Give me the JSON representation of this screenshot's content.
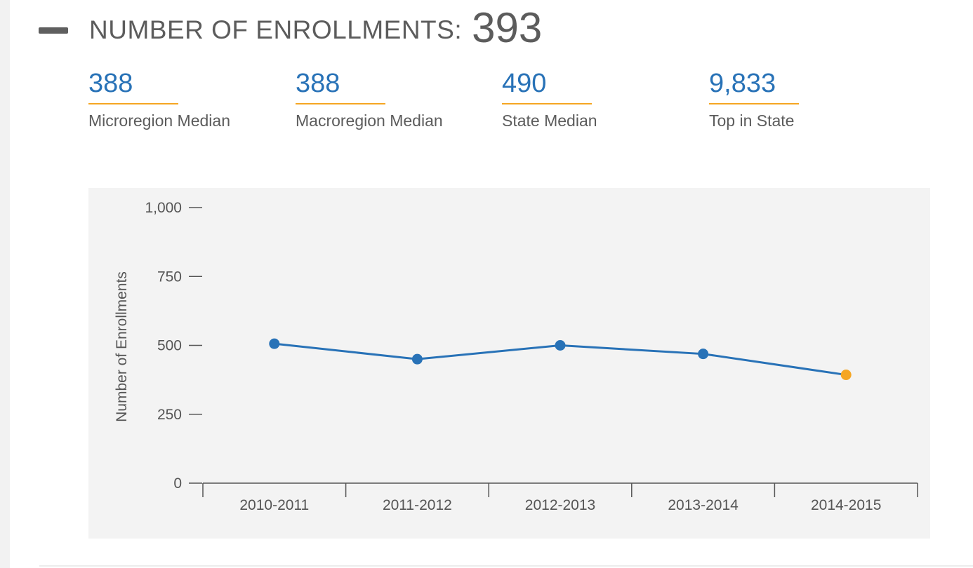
{
  "section": {
    "title": "NUMBER OF ENROLLMENTS:",
    "value": "393",
    "collapse_icon": "minus-icon"
  },
  "stats": [
    {
      "value": "388",
      "label": "Microregion Median"
    },
    {
      "value": "388",
      "label": "Macroregion Median"
    },
    {
      "value": "490",
      "label": "State Median"
    },
    {
      "value": "9,833",
      "label": "Top in State"
    }
  ],
  "colors": {
    "accent": "#2872b7",
    "highlight": "#f5a623",
    "text": "#5c5c5c",
    "panel": "#f3f3f3"
  },
  "chart_data": {
    "type": "line",
    "categories": [
      "2010-2011",
      "2011-2012",
      "2012-2013",
      "2013-2014",
      "2014-2015"
    ],
    "series": [
      {
        "values": [
          506,
          450,
          500,
          469,
          393
        ]
      }
    ],
    "highlight_index": 4,
    "ylabel": "Number of Enrollments",
    "ylim": [
      0,
      1000
    ],
    "yticks": [
      0,
      250,
      500,
      750,
      1000
    ],
    "ytick_labels": [
      "0",
      "250",
      "500",
      "750",
      "1,000"
    ],
    "grid": false
  }
}
